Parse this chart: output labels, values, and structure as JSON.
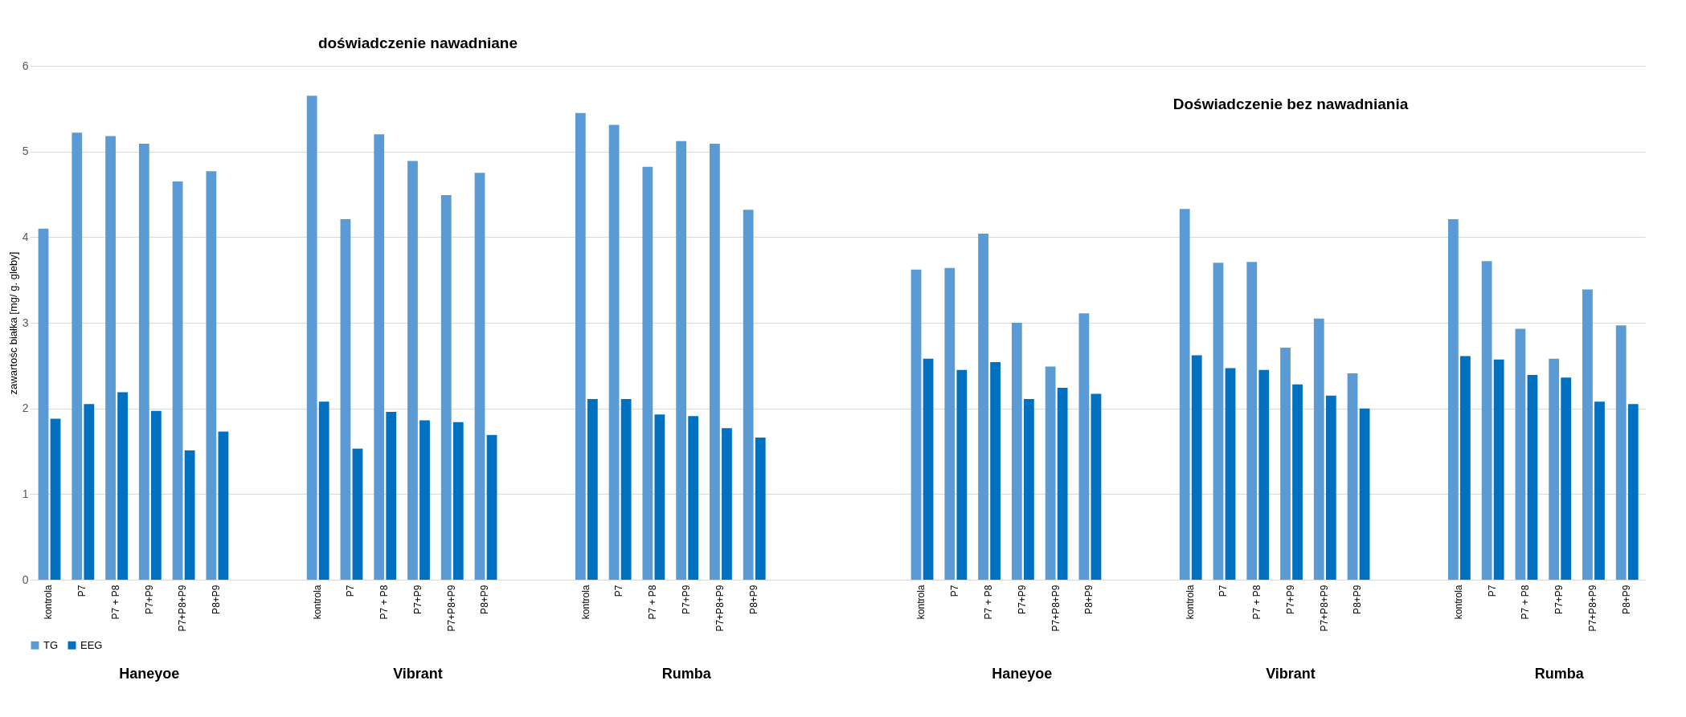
{
  "chart_data": {
    "type": "bar",
    "ylabel": "zawartośc białka [mg/ g. gleby]",
    "categories": [
      "kontrola",
      "P7",
      "P7 + P8",
      "P7+P9",
      "P7+P8+P9",
      "P8+P9",
      null,
      null,
      "kontrola",
      "P7",
      "P7 + P8",
      "P7+P9",
      "P7+P8+P9",
      "P8+P9",
      null,
      null,
      "kontrola",
      "P7",
      "P7 + P8",
      "P7+P9",
      "P7+P8+P9",
      "P8+P9",
      null,
      null,
      null,
      null,
      "kontrola",
      "P7",
      "P7 + P8",
      "P7+P9",
      "P7+P8+P9",
      "P8+P9",
      null,
      null,
      "kontrola",
      "P7",
      "P7 + P8",
      "P7+P9",
      "P7+P8+P9",
      "P8+P9",
      null,
      null,
      "kontrola",
      "P7",
      "P7 + P8",
      "P7+P9",
      "P7+P8+P9",
      "P8+P9"
    ],
    "series": [
      {
        "name": "TG",
        "color": "#5b9bd5",
        "values": [
          4.1,
          5.22,
          5.18,
          5.09,
          4.65,
          4.77,
          null,
          null,
          5.65,
          4.21,
          5.2,
          4.89,
          4.49,
          4.75,
          null,
          null,
          5.45,
          5.31,
          4.82,
          5.12,
          5.09,
          4.32,
          null,
          null,
          null,
          null,
          3.62,
          3.64,
          4.04,
          3.0,
          2.49,
          3.11,
          null,
          null,
          4.33,
          3.7,
          3.71,
          2.71,
          3.05,
          2.41,
          null,
          null,
          4.21,
          3.72,
          2.93,
          2.58,
          3.39,
          2.97
        ]
      },
      {
        "name": "EEG",
        "color": "#0070c0",
        "values": [
          1.88,
          2.05,
          2.19,
          1.97,
          1.51,
          1.73,
          null,
          null,
          2.08,
          1.53,
          1.96,
          1.86,
          1.84,
          1.69,
          null,
          null,
          2.11,
          2.11,
          1.93,
          1.91,
          1.77,
          1.66,
          null,
          null,
          null,
          null,
          2.58,
          2.45,
          2.54,
          2.11,
          2.24,
          2.17,
          null,
          null,
          2.62,
          2.47,
          2.45,
          2.28,
          2.15,
          2.0,
          null,
          null,
          2.61,
          2.57,
          2.39,
          2.36,
          2.08,
          2.05
        ]
      }
    ],
    "ylim": [
      0,
      6
    ],
    "yticks": [
      0,
      1,
      2,
      3,
      4,
      5,
      6
    ],
    "grid": "y",
    "legend": "bottom",
    "annotations": [
      "doświadczenie nawadniane",
      "Doświadczenie bez nawadniania",
      "Haneyoe",
      "Vibrant",
      "Rumba",
      "Haneyoe",
      "Vibrant",
      "Rumba"
    ]
  }
}
